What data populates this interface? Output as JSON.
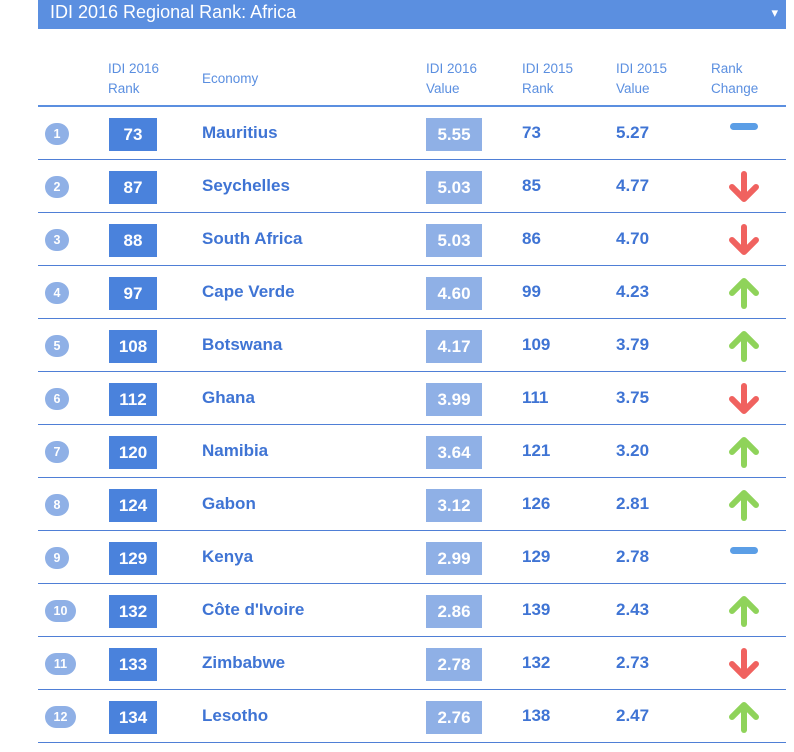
{
  "header": {
    "title": "IDI 2016 Regional Rank: Africa",
    "dropdown_glyph": "▾"
  },
  "columns": {
    "idi2016_rank": [
      "IDI 2016",
      "Rank"
    ],
    "economy": [
      "Economy"
    ],
    "idi2016_value": [
      "IDI 2016",
      "Value"
    ],
    "idi2015_rank": [
      "IDI 2015",
      "Rank"
    ],
    "idi2015_value": [
      "IDI 2015",
      "Value"
    ],
    "rank_change": [
      "Rank",
      "Change"
    ]
  },
  "colors": {
    "accent": "#5b8fe0",
    "rank_box": "#4a82dc",
    "value_box": "#8fb0e6",
    "up": "#8fd35a",
    "down": "#f0625f",
    "same": "#5b9ee6"
  },
  "rows": [
    {
      "index": "1",
      "idi2016_rank": "73",
      "economy": "Mauritius",
      "idi2016_value": "5.55",
      "idi2015_rank": "73",
      "idi2015_value": "5.27",
      "change": "same"
    },
    {
      "index": "2",
      "idi2016_rank": "87",
      "economy": "Seychelles",
      "idi2016_value": "5.03",
      "idi2015_rank": "85",
      "idi2015_value": "4.77",
      "change": "down"
    },
    {
      "index": "3",
      "idi2016_rank": "88",
      "economy": "South Africa",
      "idi2016_value": "5.03",
      "idi2015_rank": "86",
      "idi2015_value": "4.70",
      "change": "down"
    },
    {
      "index": "4",
      "idi2016_rank": "97",
      "economy": "Cape Verde",
      "idi2016_value": "4.60",
      "idi2015_rank": "99",
      "idi2015_value": "4.23",
      "change": "up"
    },
    {
      "index": "5",
      "idi2016_rank": "108",
      "economy": "Botswana",
      "idi2016_value": "4.17",
      "idi2015_rank": "109",
      "idi2015_value": "3.79",
      "change": "up"
    },
    {
      "index": "6",
      "idi2016_rank": "112",
      "economy": "Ghana",
      "idi2016_value": "3.99",
      "idi2015_rank": "111",
      "idi2015_value": "3.75",
      "change": "down"
    },
    {
      "index": "7",
      "idi2016_rank": "120",
      "economy": "Namibia",
      "idi2016_value": "3.64",
      "idi2015_rank": "121",
      "idi2015_value": "3.20",
      "change": "up"
    },
    {
      "index": "8",
      "idi2016_rank": "124",
      "economy": "Gabon",
      "idi2016_value": "3.12",
      "idi2015_rank": "126",
      "idi2015_value": "2.81",
      "change": "up"
    },
    {
      "index": "9",
      "idi2016_rank": "129",
      "economy": "Kenya",
      "idi2016_value": "2.99",
      "idi2015_rank": "129",
      "idi2015_value": "2.78",
      "change": "same"
    },
    {
      "index": "10",
      "idi2016_rank": "132",
      "economy": "Côte d'Ivoire",
      "idi2016_value": "2.86",
      "idi2015_rank": "139",
      "idi2015_value": "2.43",
      "change": "up"
    },
    {
      "index": "11",
      "idi2016_rank": "133",
      "economy": "Zimbabwe",
      "idi2016_value": "2.78",
      "idi2015_rank": "132",
      "idi2015_value": "2.73",
      "change": "down"
    },
    {
      "index": "12",
      "idi2016_rank": "134",
      "economy": "Lesotho",
      "idi2016_value": "2.76",
      "idi2015_rank": "138",
      "idi2015_value": "2.47",
      "change": "up"
    }
  ]
}
